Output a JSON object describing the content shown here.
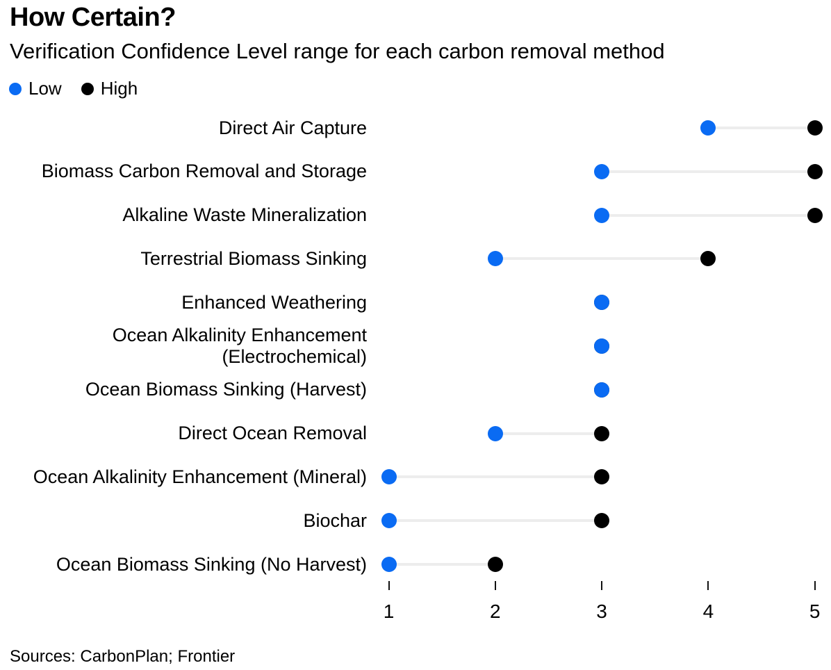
{
  "header": {
    "title": "How Certain?",
    "subtitle": "Verification Confidence Level range for each carbon removal method"
  },
  "legend": {
    "items": [
      {
        "label": "Low",
        "key": "low"
      },
      {
        "label": "High",
        "key": "high"
      }
    ]
  },
  "footer": {
    "sources": "Sources: CarbonPlan; Frontier"
  },
  "colors": {
    "low": "#0a6bf3",
    "high": "#000000",
    "connector": "#ededed",
    "text": "#000000"
  },
  "chart_data": {
    "type": "scatter",
    "variant": "dumbbell-range",
    "title": "How Certain?",
    "subtitle": "Verification Confidence Level range for each carbon removal method",
    "xlabel": "",
    "ylabel": "",
    "xlim": [
      1,
      5
    ],
    "x_ticks": [
      1,
      2,
      3,
      4,
      5
    ],
    "grid": false,
    "legend_position": "top-left",
    "categories": [
      "Direct Air Capture",
      "Biomass Carbon Removal and Storage",
      "Alkaline Waste Mineralization",
      "Terrestrial Biomass Sinking",
      "Enhanced Weathering",
      "Ocean Alkalinity Enhancement (Electrochemical)",
      "Ocean Biomass Sinking (Harvest)",
      "Direct Ocean Removal",
      "Ocean Alkalinity Enhancement (Mineral)",
      "Biochar",
      "Ocean Biomass Sinking (No Harvest)"
    ],
    "series": [
      {
        "name": "Low",
        "color": "#0a6bf3",
        "values": [
          4,
          3,
          3,
          2,
          3,
          3,
          3,
          2,
          1,
          1,
          1
        ]
      },
      {
        "name": "High",
        "color": "#000000",
        "values": [
          5,
          5,
          5,
          4,
          3,
          3,
          3,
          3,
          3,
          3,
          2
        ]
      }
    ]
  }
}
